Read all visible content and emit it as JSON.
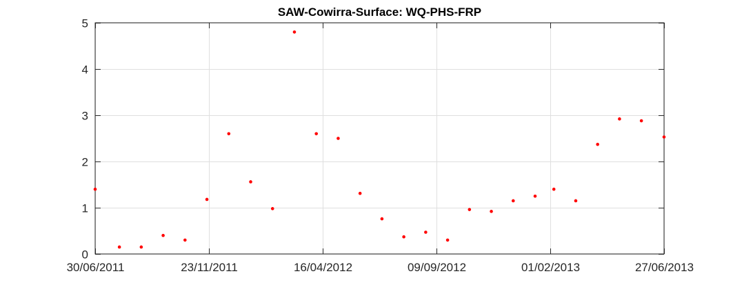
{
  "chart_data": {
    "type": "scatter",
    "title": "SAW-Cowirra-Surface: WQ-PHS-FRP",
    "xlabel": "",
    "ylabel": "",
    "x_axis_type": "date",
    "xlim": [
      "2011-06-30",
      "2013-06-27"
    ],
    "ylim": [
      0,
      5
    ],
    "xticks": [
      {
        "date": "2011-06-30",
        "label": "30/06/2011"
      },
      {
        "date": "2011-11-23",
        "label": "23/11/2011"
      },
      {
        "date": "2012-04-16",
        "label": "16/04/2012"
      },
      {
        "date": "2012-09-09",
        "label": "09/09/2012"
      },
      {
        "date": "2013-02-01",
        "label": "01/02/2013"
      },
      {
        "date": "2013-06-27",
        "label": "27/06/2013"
      }
    ],
    "yticks": [
      0,
      1,
      2,
      3,
      4,
      5
    ],
    "grid": true,
    "marker_color": "#ff0000",
    "series": [
      {
        "points": [
          {
            "x": "2011-06-30",
            "y": 1.4
          },
          {
            "x": "2011-07-31",
            "y": 0.15
          },
          {
            "x": "2011-08-28",
            "y": 0.15
          },
          {
            "x": "2011-09-25",
            "y": 0.4
          },
          {
            "x": "2011-10-23",
            "y": 0.3
          },
          {
            "x": "2011-11-20",
            "y": 1.18
          },
          {
            "x": "2011-12-18",
            "y": 2.6
          },
          {
            "x": "2012-01-15",
            "y": 1.56
          },
          {
            "x": "2012-02-12",
            "y": 0.98
          },
          {
            "x": "2012-03-11",
            "y": 4.8
          },
          {
            "x": "2012-04-08",
            "y": 2.6
          },
          {
            "x": "2012-05-06",
            "y": 2.5
          },
          {
            "x": "2012-06-03",
            "y": 1.31
          },
          {
            "x": "2012-07-01",
            "y": 0.76
          },
          {
            "x": "2012-07-29",
            "y": 0.37
          },
          {
            "x": "2012-08-26",
            "y": 0.47
          },
          {
            "x": "2012-09-23",
            "y": 0.3
          },
          {
            "x": "2012-10-21",
            "y": 0.96
          },
          {
            "x": "2012-11-18",
            "y": 0.92
          },
          {
            "x": "2012-12-16",
            "y": 1.15
          },
          {
            "x": "2013-01-13",
            "y": 1.25
          },
          {
            "x": "2013-02-06",
            "y": 1.4
          },
          {
            "x": "2013-03-06",
            "y": 1.15
          },
          {
            "x": "2013-04-03",
            "y": 2.37
          },
          {
            "x": "2013-05-01",
            "y": 2.92
          },
          {
            "x": "2013-05-29",
            "y": 2.88
          },
          {
            "x": "2013-06-27",
            "y": 2.53
          }
        ]
      }
    ]
  }
}
